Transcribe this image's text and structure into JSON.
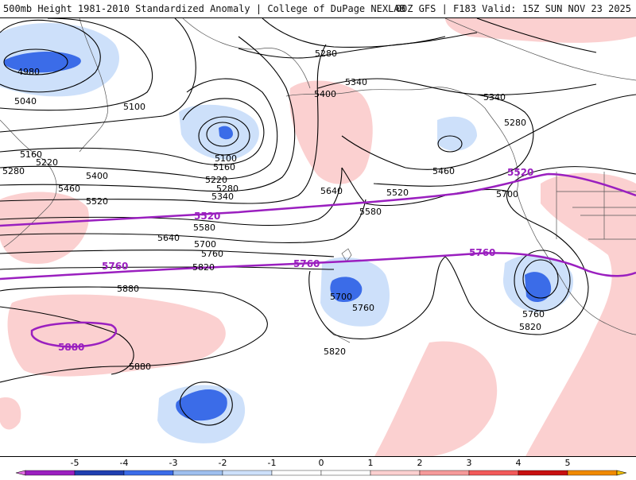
{
  "header": {
    "left_title": "500mb Height 1981-2010 Standardized Anomaly | College of DuPage NEXLAB",
    "right_title": "00Z GFS | F183 Valid: 15Z SUN NOV 23 2025"
  },
  "colors": {
    "anomaly_scale": [
      "#e36fe3",
      "#9b1fc0",
      "#1f3fb0",
      "#3b6ce8",
      "#9ebfee",
      "#cde0fa",
      "#ffffff",
      "#ffffff",
      "#fbd0d0",
      "#f59a9a",
      "#f25a5a",
      "#c81010",
      "#f08a00",
      "#f5c200"
    ],
    "highlight_contour": "#9a1fbf",
    "contour": "#000000",
    "coastline": "#555555"
  },
  "contour_labels": [
    "4980",
    "5040",
    "5100",
    "5160",
    "5220",
    "5280",
    "5100",
    "5160",
    "5220",
    "5280",
    "5340",
    "5280",
    "5340",
    "5400",
    "5460",
    "5520",
    "5580",
    "5640",
    "5700",
    "5760",
    "5820",
    "5880",
    "5400",
    "5340",
    "5280",
    "5460",
    "5520",
    "5580",
    "5640",
    "5700",
    "5700",
    "5760",
    "5820",
    "5760",
    "5820",
    "5880"
  ],
  "highlight_labels": [
    "5520",
    "5520",
    "5760",
    "5760",
    "5760",
    "5880"
  ],
  "legend": {
    "ticks": [
      "-5",
      "-4",
      "-3",
      "-2",
      "-1",
      "0",
      "1",
      "2",
      "3",
      "4",
      "5"
    ]
  }
}
